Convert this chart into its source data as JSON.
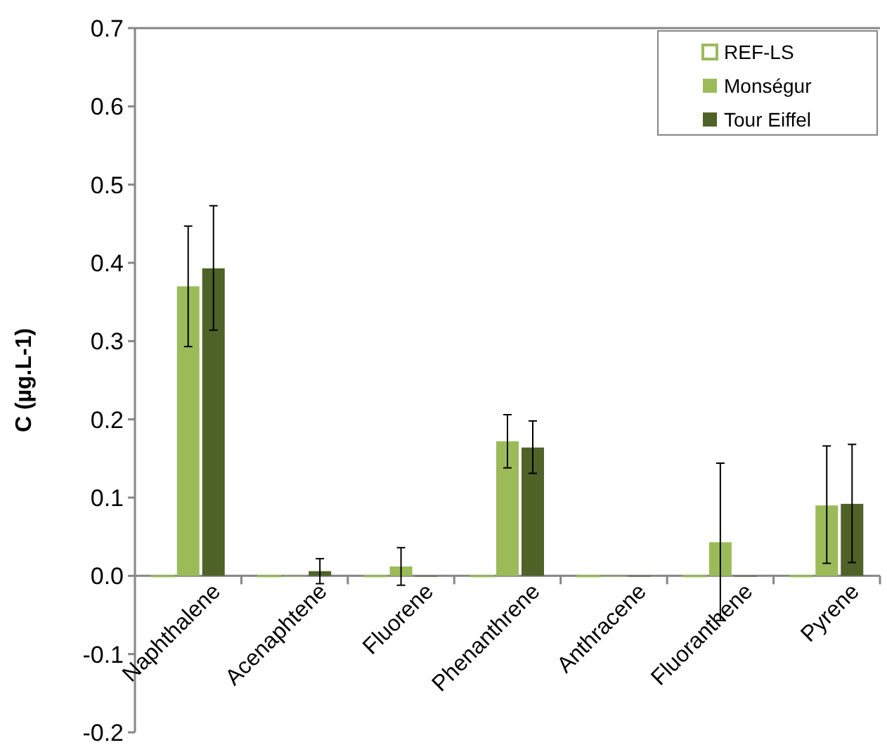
{
  "chart_data": {
    "type": "bar",
    "ylabel": "C (µg.L-1)",
    "categories": [
      "Naphthalene",
      "Acenaphtene",
      "Fluorene",
      "Phenanthrene",
      "Anthracene",
      "Fluoranthene",
      "Pyrene"
    ],
    "series": [
      {
        "name": "REF-LS",
        "color": "#ffffff",
        "values": [
          0,
          0,
          0,
          0,
          0,
          0,
          0
        ]
      },
      {
        "name": "Monségur",
        "color": "#9bbb59",
        "values": [
          0.37,
          0,
          0.012,
          0.172,
          0,
          0.043,
          0.09
        ],
        "errors": [
          [
            0.293,
            0.447
          ],
          null,
          [
            -0.012,
            0.036
          ],
          [
            0.138,
            0.206
          ],
          null,
          [
            -0.057,
            0.144
          ],
          [
            0.016,
            0.166
          ]
        ]
      },
      {
        "name": "Tour Eiffel",
        "color": "#4f6228",
        "values": [
          0.393,
          0.006,
          0,
          0.164,
          0,
          0,
          0.092
        ],
        "errors": [
          [
            0.314,
            0.473
          ],
          [
            -0.01,
            0.022
          ],
          null,
          [
            0.131,
            0.198
          ],
          null,
          null,
          [
            0.017,
            0.168
          ]
        ]
      }
    ],
    "ylim": [
      -0.2,
      0.7
    ],
    "yticks": [
      {
        "value": -0.2,
        "label": "-0.2"
      },
      {
        "value": -0.1,
        "label": "-0.1"
      },
      {
        "value": 0,
        "label": "0.0"
      },
      {
        "value": 0.1,
        "label": "0.1"
      },
      {
        "value": 0.2,
        "label": "0.2"
      },
      {
        "value": 0.3,
        "label": "0.3"
      },
      {
        "value": 0.4,
        "label": "0.4"
      },
      {
        "value": 0.5,
        "label": "0.5"
      },
      {
        "value": 0.6,
        "label": "0.6"
      },
      {
        "value": 0.7,
        "label": "0.7"
      }
    ],
    "grid": false,
    "legend": "top right"
  }
}
